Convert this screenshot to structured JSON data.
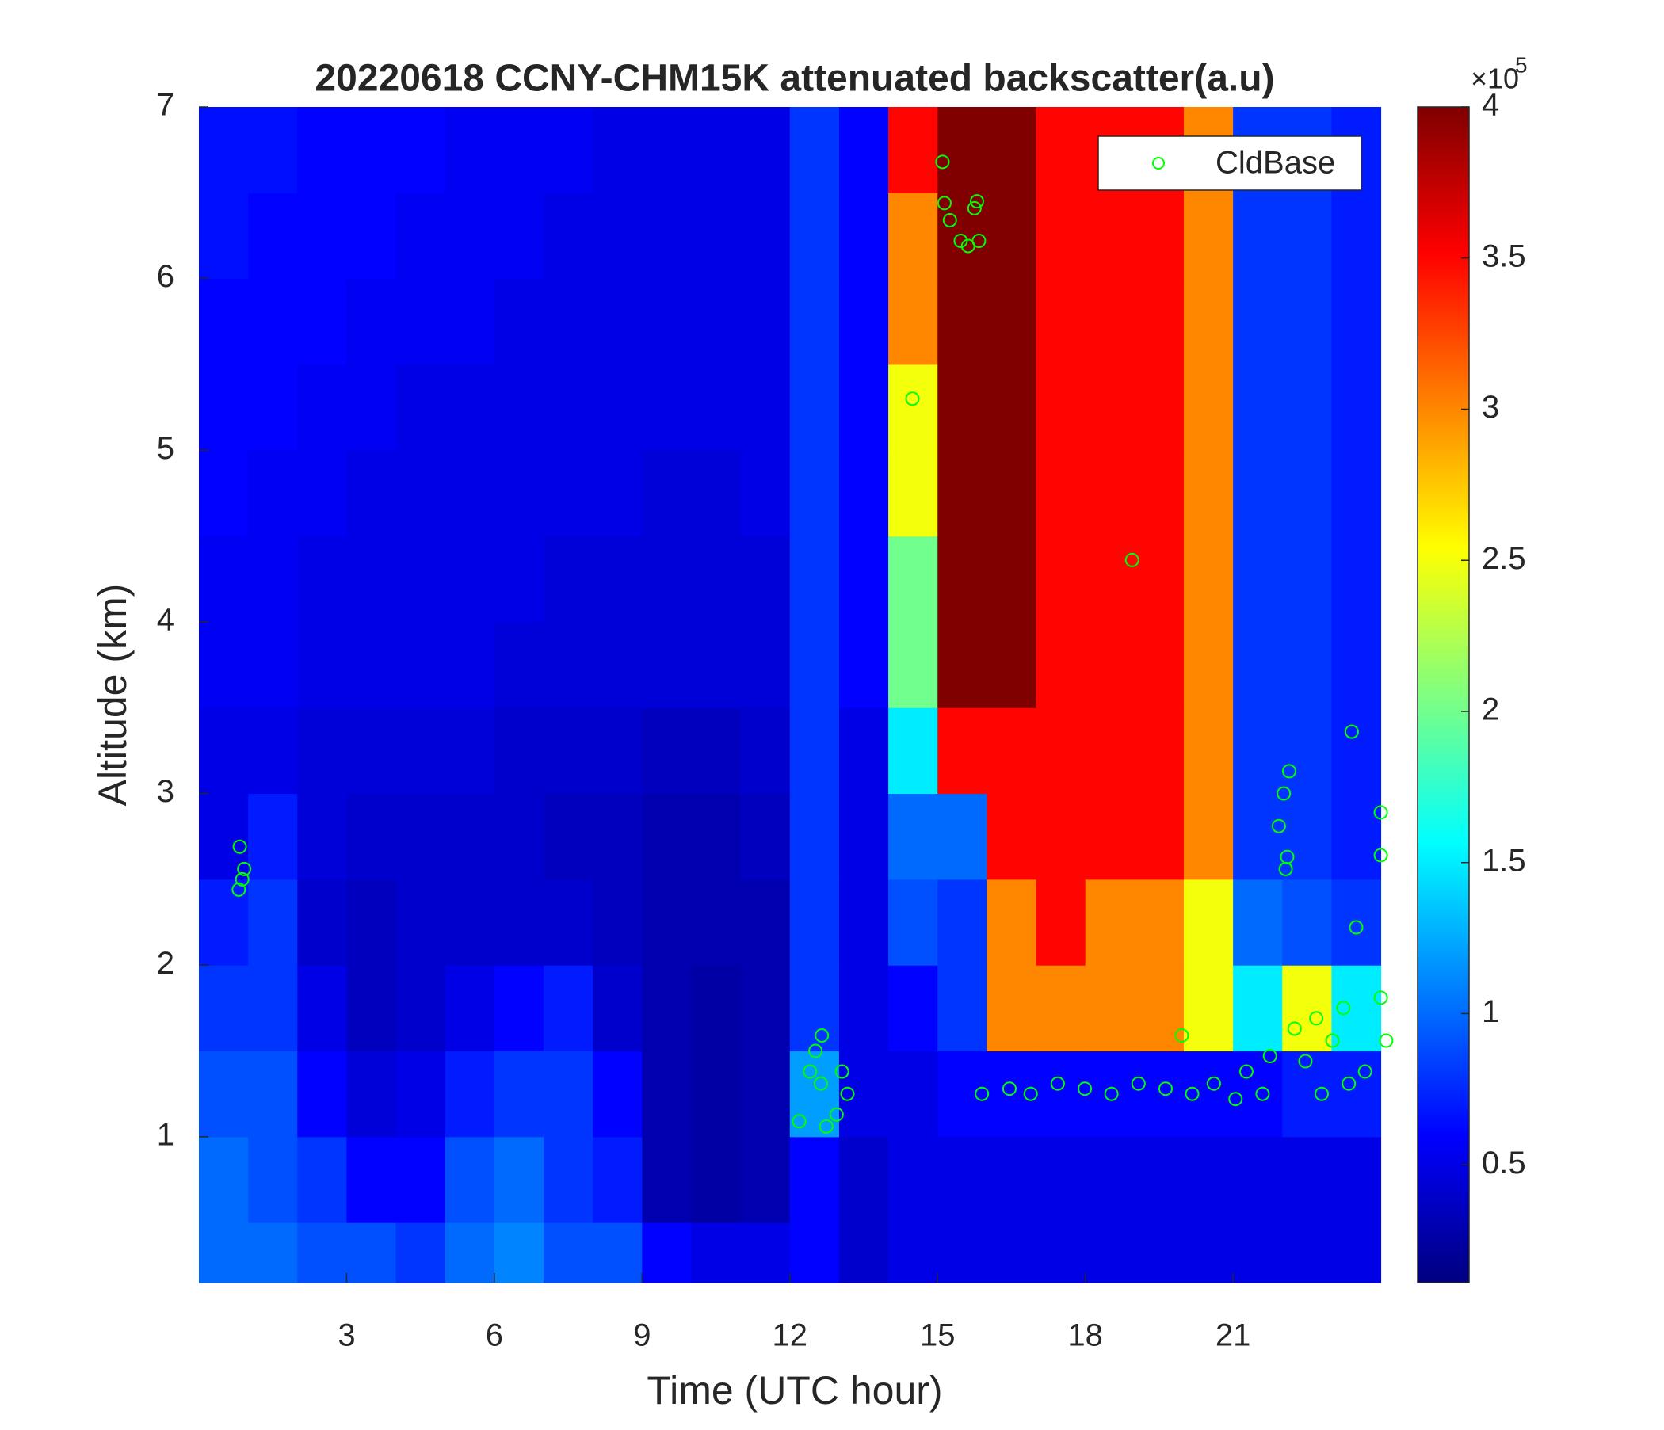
{
  "chart_data": {
    "type": "heatmap",
    "title": "20220618 CCNY-CHM15K attenuated backscatter(a.u)",
    "xlabel": "Time (UTC hour)",
    "ylabel": "Altitude (km)",
    "xlim": [
      0,
      24.2
    ],
    "ylim": [
      0.15,
      7
    ],
    "xticks": [
      3,
      6,
      9,
      12,
      15,
      18,
      21
    ],
    "yticks": [
      1,
      2,
      3,
      4,
      5,
      6,
      7
    ],
    "x_edges": [
      0,
      1,
      2,
      3,
      4,
      5,
      6,
      7,
      8,
      9,
      10,
      11,
      12,
      13,
      14,
      15,
      16,
      17,
      18,
      19,
      20,
      21,
      22,
      23,
      24
    ],
    "y_edges": [
      0.15,
      0.5,
      1,
      1.5,
      2,
      2.5,
      3,
      3.5,
      4,
      4.5,
      5,
      5.5,
      6,
      6.5,
      7
    ],
    "z": [
      [
        1.0,
        1.0,
        0.9,
        0.9,
        0.8,
        1.0,
        1.1,
        0.9,
        0.9,
        0.6,
        0.5,
        0.5,
        0.6,
        0.4,
        0.5,
        0.5,
        0.5,
        0.5,
        0.5,
        0.5,
        0.5,
        0.5,
        0.5,
        0.5
      ],
      [
        1.0,
        0.9,
        0.8,
        0.6,
        0.6,
        0.9,
        1.0,
        0.8,
        0.7,
        0.3,
        0.25,
        0.3,
        0.6,
        0.4,
        0.5,
        0.5,
        0.5,
        0.5,
        0.5,
        0.5,
        0.5,
        0.5,
        0.5,
        0.5
      ],
      [
        0.9,
        0.9,
        0.6,
        0.45,
        0.5,
        0.7,
        0.8,
        0.8,
        0.6,
        0.3,
        0.25,
        0.3,
        1.2,
        0.5,
        0.5,
        0.6,
        0.6,
        0.6,
        0.6,
        0.6,
        0.6,
        0.6,
        0.7,
        0.7
      ],
      [
        0.8,
        0.8,
        0.5,
        0.35,
        0.4,
        0.5,
        0.6,
        0.7,
        0.4,
        0.3,
        0.25,
        0.3,
        0.8,
        0.5,
        0.6,
        0.8,
        3.0,
        3.0,
        3.0,
        3.0,
        2.5,
        1.5,
        2.5,
        1.5
      ],
      [
        0.7,
        0.8,
        0.4,
        0.35,
        0.4,
        0.4,
        0.4,
        0.4,
        0.35,
        0.3,
        0.3,
        0.3,
        0.8,
        0.5,
        0.9,
        0.8,
        3.0,
        3.5,
        3.0,
        3.0,
        2.5,
        1.0,
        0.9,
        0.8
      ],
      [
        0.5,
        0.7,
        0.45,
        0.4,
        0.4,
        0.4,
        0.4,
        0.35,
        0.35,
        0.3,
        0.3,
        0.35,
        0.8,
        0.5,
        1.0,
        1.0,
        3.5,
        3.5,
        3.5,
        3.5,
        3.0,
        0.8,
        0.8,
        0.7
      ],
      [
        0.5,
        0.5,
        0.45,
        0.45,
        0.45,
        0.45,
        0.4,
        0.4,
        0.4,
        0.35,
        0.35,
        0.4,
        0.8,
        0.5,
        1.5,
        3.5,
        3.5,
        3.5,
        3.5,
        3.5,
        3.0,
        0.8,
        0.8,
        0.7
      ],
      [
        0.55,
        0.55,
        0.5,
        0.5,
        0.5,
        0.5,
        0.45,
        0.45,
        0.45,
        0.45,
        0.45,
        0.45,
        0.8,
        0.6,
        2.0,
        4,
        4,
        3.5,
        3.5,
        3.5,
        3.0,
        0.8,
        0.8,
        0.7
      ],
      [
        0.55,
        0.55,
        0.5,
        0.5,
        0.5,
        0.5,
        0.5,
        0.45,
        0.45,
        0.45,
        0.45,
        0.45,
        0.8,
        0.6,
        2.0,
        4,
        4,
        3.5,
        3.5,
        3.5,
        3.0,
        0.8,
        0.8,
        0.7
      ],
      [
        0.6,
        0.55,
        0.55,
        0.5,
        0.5,
        0.5,
        0.5,
        0.5,
        0.5,
        0.45,
        0.45,
        0.5,
        0.8,
        0.6,
        2.5,
        4,
        4,
        3.5,
        3.5,
        3.5,
        3.0,
        0.8,
        0.8,
        0.7
      ],
      [
        0.6,
        0.6,
        0.55,
        0.55,
        0.5,
        0.5,
        0.5,
        0.5,
        0.5,
        0.5,
        0.5,
        0.5,
        0.8,
        0.6,
        2.5,
        4,
        4,
        3.5,
        3.5,
        3.5,
        3.0,
        0.8,
        0.8,
        0.7
      ],
      [
        0.6,
        0.6,
        0.6,
        0.55,
        0.55,
        0.55,
        0.5,
        0.5,
        0.5,
        0.5,
        0.5,
        0.5,
        0.8,
        0.6,
        3.0,
        4,
        4,
        3.5,
        3.5,
        3.5,
        3.0,
        0.8,
        0.8,
        0.7
      ],
      [
        0.65,
        0.6,
        0.6,
        0.6,
        0.55,
        0.55,
        0.55,
        0.5,
        0.5,
        0.5,
        0.5,
        0.5,
        0.8,
        0.6,
        3.0,
        4,
        4,
        3.5,
        3.5,
        3.5,
        3.0,
        0.8,
        0.8,
        0.7
      ],
      [
        0.65,
        0.65,
        0.6,
        0.6,
        0.6,
        0.55,
        0.55,
        0.55,
        0.5,
        0.5,
        0.5,
        0.5,
        0.8,
        0.6,
        3.5,
        4,
        4,
        3.5,
        3.5,
        3.5,
        3.0,
        0.8,
        0.8,
        0.7
      ]
    ],
    "colormap": "jet",
    "clim": [
      0.11,
      4
    ],
    "cticks": [
      0.5,
      1,
      1.5,
      2,
      2.5,
      3,
      3.5,
      4
    ],
    "colorbar_multiplier": {
      "base": "×10",
      "exponent": "5"
    },
    "scatter": {
      "name": "CldBase",
      "color": "#00ff00",
      "marker": "circle",
      "x": [
        0.81,
        0.83,
        0.92,
        0.88,
        12.19,
        12.41,
        12.52,
        12.63,
        12.74,
        12.95,
        13.06,
        13.17,
        12.65,
        14.49,
        15.1,
        15.14,
        15.25,
        15.47,
        15.62,
        15.75,
        15.84,
        15.8,
        18.95,
        15.9,
        16.46,
        16.89,
        17.44,
        17.99,
        18.53,
        19.08,
        19.63,
        19.96,
        20.17,
        20.61,
        21.05,
        21.27,
        21.6,
        22.03,
        22.14,
        22.1,
        22.07,
        21.93,
        22.25,
        22.47,
        22.69,
        23.02,
        23.24,
        23.35,
        23.41,
        23.5,
        24.0,
        24.0,
        24.0,
        24.11,
        23.68,
        22.8,
        21.75
      ],
      "y": [
        2.44,
        2.69,
        2.56,
        2.5,
        1.09,
        1.38,
        1.5,
        1.31,
        1.06,
        1.13,
        1.38,
        1.25,
        1.59,
        5.3,
        6.68,
        6.44,
        6.34,
        6.22,
        6.19,
        6.41,
        6.22,
        6.45,
        4.36,
        1.25,
        1.28,
        1.25,
        1.31,
        1.28,
        1.25,
        1.31,
        1.28,
        1.59,
        1.25,
        1.31,
        1.22,
        1.38,
        1.25,
        3.0,
        3.13,
        2.63,
        2.56,
        2.81,
        1.63,
        1.44,
        1.69,
        1.56,
        1.75,
        1.31,
        3.36,
        2.22,
        2.89,
        2.64,
        1.81,
        1.56,
        1.38,
        1.25,
        1.47
      ]
    },
    "legend": "upper right"
  }
}
